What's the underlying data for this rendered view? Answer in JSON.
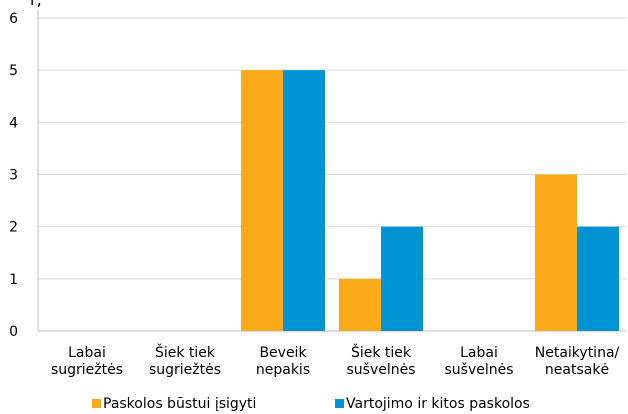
{
  "chart_data": {
    "type": "bar",
    "categories": [
      [
        "Labai",
        "sugriežtės"
      ],
      [
        "Šiek tiek",
        "sugriežtės"
      ],
      [
        "Beveik",
        "nepakis"
      ],
      [
        "Šiek tiek",
        "sušvelnės"
      ],
      [
        "Labai",
        "sušvelnės"
      ],
      [
        "Netaikytina/",
        "neatsakė"
      ]
    ],
    "series": [
      {
        "name": "Paskolos būstui įsigyti",
        "color": "#FBAA19",
        "values": [
          0,
          0,
          5,
          1,
          0,
          3
        ]
      },
      {
        "name": "Vartojimo ir kitos paskolos",
        "color": "#0094D5",
        "values": [
          0,
          0,
          5,
          2,
          0,
          2
        ]
      }
    ],
    "ylim": [
      0,
      6
    ],
    "yticks": [
      0,
      1,
      2,
      3,
      4,
      5,
      6
    ],
    "grid": true,
    "legend": "bottom",
    "top_label_fragment": "r,"
  }
}
